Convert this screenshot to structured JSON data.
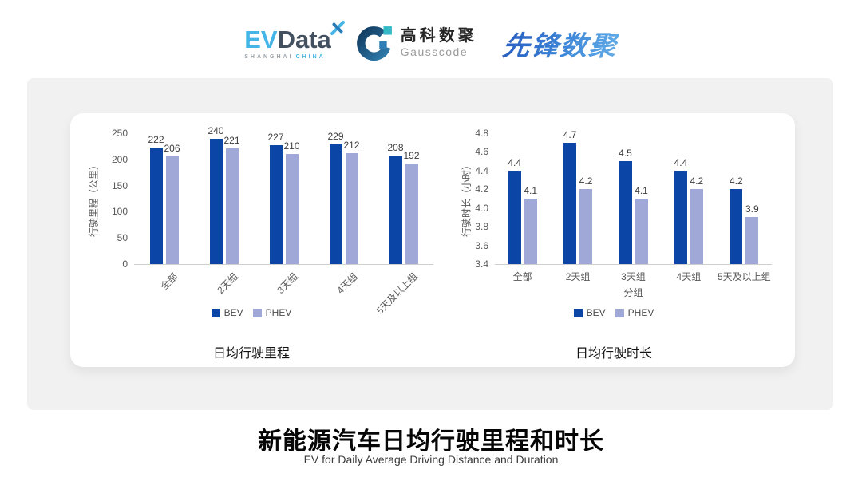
{
  "header": {
    "evdata": {
      "ev": "EV",
      "data": "Data",
      "sub_left": "SHANGHAI",
      "sub_right": "CHINA"
    },
    "gausscode": {
      "cn": "高科数聚",
      "en": "Gausscode"
    },
    "xianfeng": "先锋数聚"
  },
  "chart_data": [
    {
      "type": "bar",
      "title": "日均行驶里程",
      "ylabel": "行驶里程（公里）",
      "xlabel": "",
      "categories": [
        "全部",
        "2天组",
        "3天组",
        "4天组",
        "5天及以上组"
      ],
      "series": [
        {
          "name": "BEV",
          "values": [
            222,
            240,
            227,
            229,
            208
          ]
        },
        {
          "name": "PHEV",
          "values": [
            206,
            221,
            210,
            212,
            192
          ]
        }
      ],
      "ylim": [
        0,
        250
      ],
      "ytick_step": 50,
      "x_label_rotation": -45,
      "legend_position": "bottom",
      "grid": false
    },
    {
      "type": "bar",
      "title": "日均行驶时长",
      "ylabel": "行驶时长（小时）",
      "xlabel": "分组",
      "categories": [
        "全部",
        "2天组",
        "3天组",
        "4天组",
        "5天及以上组"
      ],
      "series": [
        {
          "name": "BEV",
          "values": [
            4.4,
            4.7,
            4.5,
            4.4,
            4.2
          ]
        },
        {
          "name": "PHEV",
          "values": [
            4.1,
            4.2,
            4.1,
            4.2,
            3.9
          ]
        }
      ],
      "ylim": [
        3.4,
        4.8
      ],
      "ytick_step": 0.2,
      "x_label_rotation": 0,
      "legend_position": "bottom",
      "grid": false
    }
  ],
  "colors": {
    "series": [
      "#0B45A6",
      "#9FA8D6"
    ],
    "axis_line": "#CFCFCF",
    "tick_text": "#595959",
    "value_text": "#3C3C3C",
    "panel_bg": "#F1F1F1"
  },
  "footer": {
    "title": "新能源汽车日均行驶里程和时长",
    "subtitle": "EV for Daily Average Driving Distance and Duration"
  }
}
